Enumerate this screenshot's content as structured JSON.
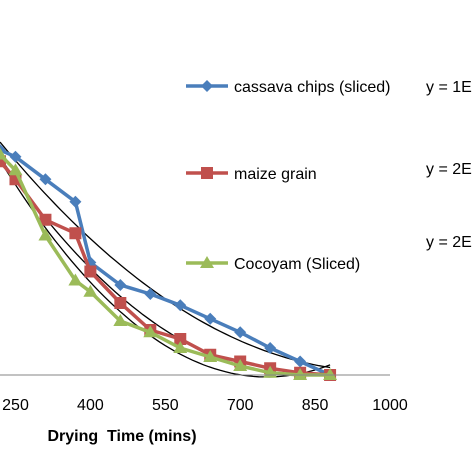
{
  "chart_data": {
    "type": "line",
    "xlabel": "Drying  Time (mins)",
    "x_ticks": [
      250,
      400,
      550,
      700,
      850,
      1000
    ],
    "x_tick_labels": [
      "250",
      "400",
      "550",
      "700",
      "850",
      "1000"
    ],
    "xlim": [
      219,
      1000
    ],
    "ylim": [
      0,
      1
    ],
    "legend_position": "right",
    "series": [
      {
        "name": "cassava chips (sliced)",
        "color": "#4a7ebb",
        "marker": "diamond",
        "x": [
          219,
          250,
          310,
          370,
          400,
          460,
          520,
          580,
          640,
          700,
          760,
          820,
          880
        ],
        "y": [
          1.0,
          0.97,
          0.87,
          0.77,
          0.5,
          0.4,
          0.36,
          0.31,
          0.25,
          0.19,
          0.12,
          0.06,
          0.0
        ]
      },
      {
        "name": "maize grain",
        "color": "#c0504d",
        "marker": "square",
        "x": [
          219,
          250,
          310,
          370,
          400,
          460,
          520,
          580,
          640,
          700,
          760,
          820,
          880
        ],
        "y": [
          0.95,
          0.87,
          0.69,
          0.63,
          0.46,
          0.32,
          0.2,
          0.16,
          0.09,
          0.06,
          0.03,
          0.01,
          0.0
        ]
      },
      {
        "name": "Cocoyam (Sliced)",
        "color": "#9bbb59",
        "marker": "triangle",
        "x": [
          219,
          250,
          310,
          370,
          400,
          460,
          520,
          580,
          640,
          700,
          760,
          820,
          880
        ],
        "y": [
          0.98,
          0.91,
          0.62,
          0.42,
          0.37,
          0.24,
          0.19,
          0.12,
          0.08,
          0.04,
          0.01,
          0.0,
          0.0
        ]
      }
    ],
    "annotations": [
      "y = 1E",
      "y = 2E",
      "y = 2E"
    ]
  }
}
